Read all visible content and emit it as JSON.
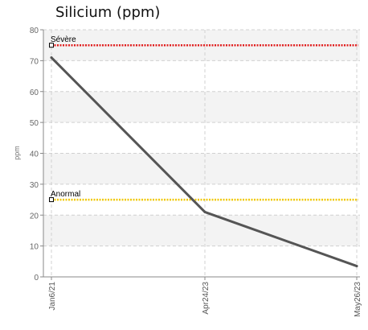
{
  "chart_data": {
    "type": "line",
    "title": "Silicium (ppm)",
    "ylabel": "ppm",
    "xlabel": "",
    "ylim": [
      0,
      80
    ],
    "yticks": [
      0,
      10,
      20,
      30,
      40,
      50,
      60,
      70,
      80
    ],
    "grid": true,
    "x": [
      "Jan6/21",
      "Apr24/23",
      "May26/23"
    ],
    "series": [
      {
        "values": [
          71,
          21,
          3.5
        ],
        "color": "#555555"
      }
    ],
    "thresholds": [
      {
        "label": "Sévère",
        "value": 75,
        "color": "#e02020"
      },
      {
        "label": "Anormal",
        "value": 25,
        "color": "#f0c800"
      }
    ]
  }
}
